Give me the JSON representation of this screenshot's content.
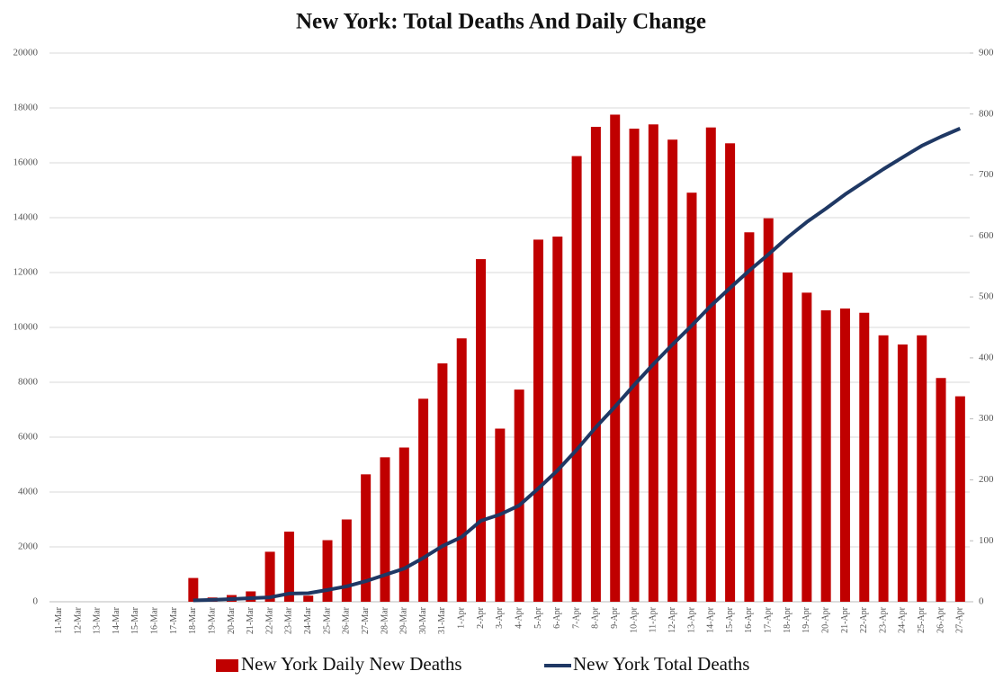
{
  "chart_data": {
    "type": "combo",
    "title": "New York: Total Deaths And Daily Change",
    "categories": [
      "11-Mar",
      "12-Mar",
      "13-Mar",
      "14-Mar",
      "15-Mar",
      "16-Mar",
      "17-Mar",
      "18-Mar",
      "19-Mar",
      "20-Mar",
      "21-Mar",
      "22-Mar",
      "23-Mar",
      "24-Mar",
      "25-Mar",
      "26-Mar",
      "27-Mar",
      "28-Mar",
      "29-Mar",
      "30-Mar",
      "31-Mar",
      "1-Apr",
      "2-Apr",
      "3-Apr",
      "4-Apr",
      "5-Apr",
      "6-Apr",
      "7-Apr",
      "8-Apr",
      "9-Apr",
      "10-Apr",
      "11-Apr",
      "12-Apr",
      "13-Apr",
      "14-Apr",
      "15-Apr",
      "16-Apr",
      "17-Apr",
      "18-Apr",
      "19-Apr",
      "20-Apr",
      "21-Apr",
      "22-Apr",
      "23-Apr",
      "24-Apr",
      "25-Apr",
      "26-Apr",
      "27-Apr"
    ],
    "series": [
      {
        "name": "New York Daily New Deaths",
        "type": "bar",
        "axis": "y2",
        "color": "#c00000",
        "values": [
          0,
          0,
          0,
          0,
          0,
          0,
          0,
          39,
          7,
          11,
          17,
          82,
          115,
          10,
          101,
          135,
          209,
          237,
          253,
          333,
          391,
          432,
          562,
          284,
          348,
          594,
          599,
          731,
          779,
          799,
          776,
          783,
          758,
          671,
          778,
          752,
          606,
          629,
          540,
          507,
          478,
          481,
          474,
          437,
          422,
          437,
          367,
          337
        ]
      },
      {
        "name": "New York Total Deaths",
        "type": "line",
        "color": "#1f3864",
        "values": [
          null,
          null,
          null,
          null,
          null,
          null,
          null,
          50,
          70,
          100,
          130,
          160,
          300,
          310,
          430,
          560,
          750,
          980,
          1210,
          1600,
          2030,
          2360,
          2950,
          3180,
          3510,
          4130,
          4790,
          5540,
          6360,
          7110,
          7900,
          8660,
          9380,
          10070,
          10790,
          11440,
          12070,
          12660,
          13280,
          13840,
          14330,
          14850,
          15310,
          15770,
          16200,
          16620,
          16950,
          17250
        ]
      }
    ],
    "ylim": [
      0,
      20000
    ],
    "yticks": [
      0,
      2000,
      4000,
      6000,
      8000,
      10000,
      12000,
      14000,
      16000,
      18000,
      20000
    ],
    "y2lim": [
      0,
      900
    ],
    "y2ticks": [
      0,
      100,
      200,
      300,
      400,
      500,
      600,
      700,
      800,
      900
    ],
    "grid": true,
    "legend": "bottom"
  }
}
